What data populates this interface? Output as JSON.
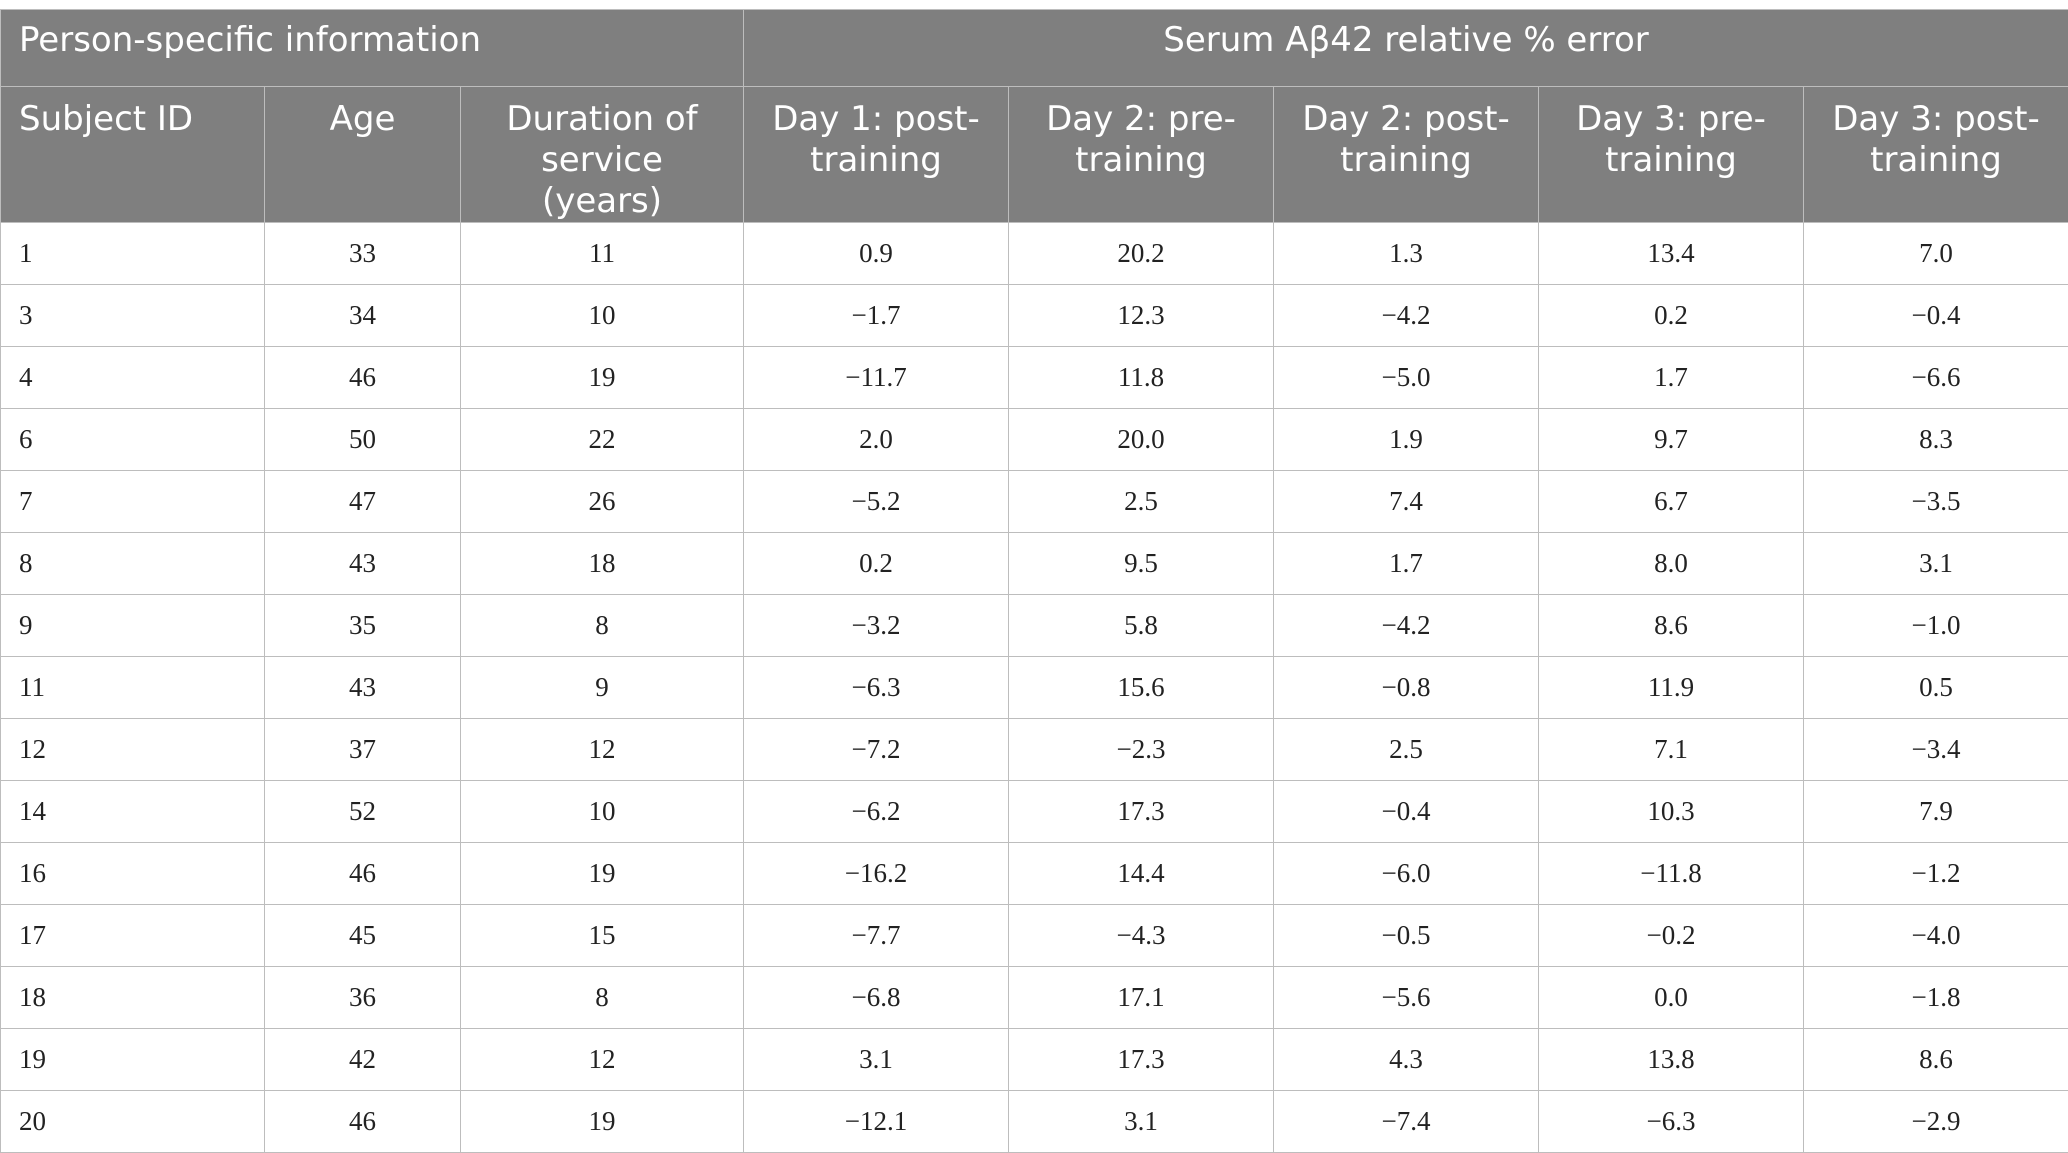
{
  "table": {
    "group_headers": [
      {
        "label": "Person-specific information"
      },
      {
        "label": "Serum Aβ42 relative % error"
      }
    ],
    "columns": [
      "Subject ID",
      "Age",
      "Duration of service (years)",
      "Day 1: post-training",
      "Day 2: pre-training",
      "Day 2: post-training",
      "Day 3: pre-training",
      "Day 3: post-training"
    ],
    "rows": [
      [
        "1",
        "33",
        "11",
        "0.9",
        "20.2",
        "1.3",
        "13.4",
        "7.0"
      ],
      [
        "3",
        "34",
        "10",
        "−1.7",
        "12.3",
        "−4.2",
        "0.2",
        "−0.4"
      ],
      [
        "4",
        "46",
        "19",
        "−11.7",
        "11.8",
        "−5.0",
        "1.7",
        "−6.6"
      ],
      [
        "6",
        "50",
        "22",
        "2.0",
        "20.0",
        "1.9",
        "9.7",
        "8.3"
      ],
      [
        "7",
        "47",
        "26",
        "−5.2",
        "2.5",
        "7.4",
        "6.7",
        "−3.5"
      ],
      [
        "8",
        "43",
        "18",
        "0.2",
        "9.5",
        "1.7",
        "8.0",
        "3.1"
      ],
      [
        "9",
        "35",
        "8",
        "−3.2",
        "5.8",
        "−4.2",
        "8.6",
        "−1.0"
      ],
      [
        "11",
        "43",
        "9",
        "−6.3",
        "15.6",
        "−0.8",
        "11.9",
        "0.5"
      ],
      [
        "12",
        "37",
        "12",
        "−7.2",
        "−2.3",
        "2.5",
        "7.1",
        "−3.4"
      ],
      [
        "14",
        "52",
        "10",
        "−6.2",
        "17.3",
        "−0.4",
        "10.3",
        "7.9"
      ],
      [
        "16",
        "46",
        "19",
        "−16.2",
        "14.4",
        "−6.0",
        "−11.8",
        "−1.2"
      ],
      [
        "17",
        "45",
        "15",
        "−7.7",
        "−4.3",
        "−0.5",
        "−0.2",
        "−4.0"
      ],
      [
        "18",
        "36",
        "8",
        "−6.8",
        "17.1",
        "−5.6",
        "0.0",
        "−1.8"
      ],
      [
        "19",
        "42",
        "12",
        "3.1",
        "17.3",
        "4.3",
        "13.8",
        "8.6"
      ],
      [
        "20",
        "46",
        "19",
        "−12.1",
        "3.1",
        "−7.4",
        "−6.3",
        "−2.9"
      ]
    ]
  },
  "colors": {
    "header_background": "#7f7f7f",
    "header_text": "#ffffff",
    "grid_lines": "#bdbdbd",
    "body_text": "#222222"
  }
}
